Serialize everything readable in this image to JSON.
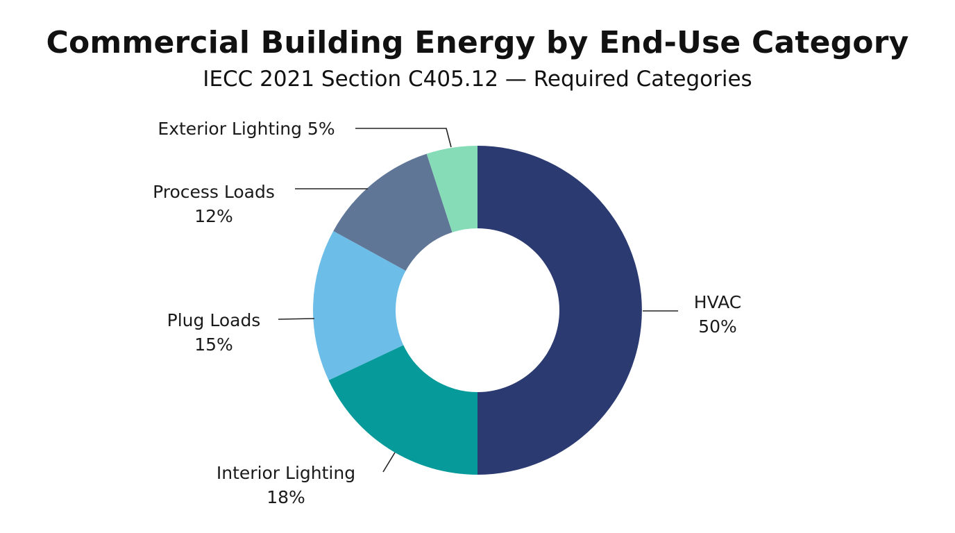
{
  "chart_data": {
    "type": "pie",
    "donut": true,
    "title": "Commercial Building Energy by End-Use Category",
    "subtitle": "IECC 2021 Section C405.12 — Required Categories",
    "slices": [
      {
        "name": "HVAC",
        "value": 50,
        "label": "50%",
        "color": "#2b3a70"
      },
      {
        "name": "Interior Lighting",
        "value": 18,
        "label": "18%",
        "color": "#079a9a"
      },
      {
        "name": "Plug Loads",
        "value": 15,
        "label": "15%",
        "color": "#6cbde8"
      },
      {
        "name": "Process Loads",
        "value": 12,
        "label": "12%",
        "color": "#607696"
      },
      {
        "name": "Exterior Lighting",
        "value": 5,
        "label": "5%",
        "color": "#86dcb6"
      }
    ]
  }
}
